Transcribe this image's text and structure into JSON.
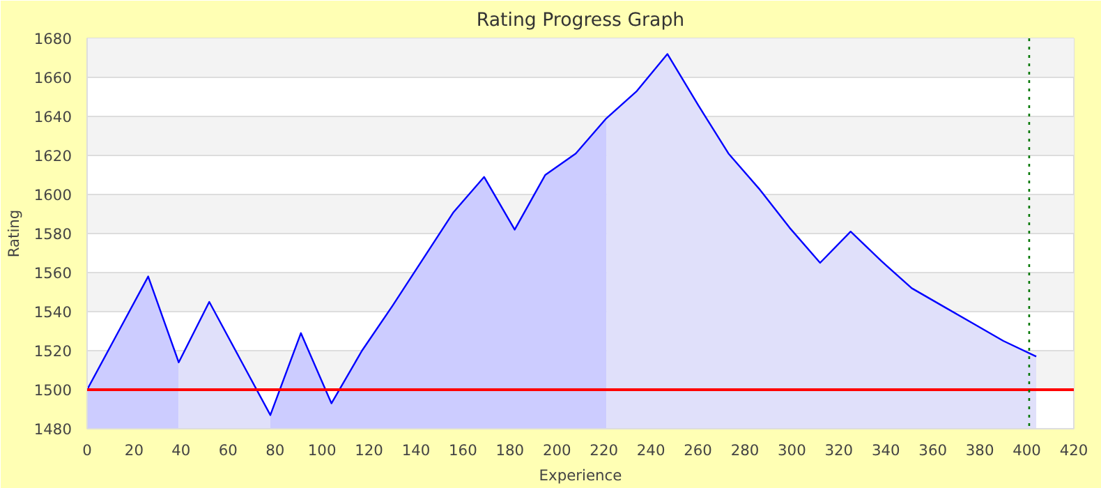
{
  "chart_data": {
    "type": "area",
    "title": "Rating Progress Graph",
    "xlabel": "Experience",
    "ylabel": "Rating",
    "xlim": [
      0,
      420
    ],
    "xticks": [
      0,
      20,
      40,
      60,
      80,
      100,
      120,
      140,
      160,
      180,
      200,
      220,
      240,
      260,
      280,
      300,
      320,
      340,
      360,
      380,
      400,
      420
    ],
    "ylim": [
      1480,
      1680
    ],
    "yticks": [
      1480,
      1500,
      1520,
      1540,
      1560,
      1580,
      1600,
      1620,
      1640,
      1660,
      1680
    ],
    "grid": "y",
    "series": [
      {
        "color": "#ccccff",
        "x": [
          0,
          13,
          26,
          39
        ],
        "values": [
          1500,
          1529,
          1558,
          1514
        ]
      },
      {
        "color": "#e0e0fa",
        "x": [
          39,
          52,
          65,
          78
        ],
        "values": [
          1514,
          1545,
          1516,
          1487
        ]
      },
      {
        "color": "#ccccff",
        "x": [
          78,
          91,
          104,
          117,
          130,
          143,
          156,
          169,
          182,
          195,
          208,
          221
        ],
        "values": [
          1487,
          1529,
          1493,
          1520,
          1543,
          1567,
          1591,
          1609,
          1582,
          1610,
          1621,
          1639
        ]
      },
      {
        "color": "#e0e0fa",
        "x": [
          221,
          234,
          247,
          260,
          273,
          286,
          299,
          312,
          325,
          338,
          351,
          364,
          377,
          390,
          404
        ],
        "values": [
          1639,
          1653,
          1672,
          1646,
          1621,
          1603,
          1583,
          1565,
          1581,
          1566,
          1552,
          1543,
          1534,
          1525,
          1517
        ]
      },
      {
        "type": "line",
        "color": "#0000ff",
        "x": [
          0,
          13,
          26,
          39,
          52,
          65,
          78,
          91,
          104,
          117,
          130,
          143,
          156,
          169,
          182,
          195,
          208,
          221,
          234,
          247,
          260,
          273,
          286,
          299,
          312,
          325,
          338,
          351,
          364,
          377,
          390,
          404
        ],
        "values": [
          1500,
          1529,
          1558,
          1514,
          1545,
          1516,
          1487,
          1529,
          1493,
          1520,
          1543,
          1567,
          1591,
          1609,
          1582,
          1610,
          1621,
          1639,
          1653,
          1672,
          1646,
          1621,
          1603,
          1583,
          1565,
          1581,
          1566,
          1552,
          1543,
          1534,
          1525,
          1517
        ]
      }
    ],
    "ref_lines": [
      {
        "axis": "y",
        "value": 1500,
        "color": "#ff0000",
        "line_style": "solid"
      },
      {
        "axis": "x",
        "value": 401,
        "color": "#007700",
        "line_style": "dotted"
      }
    ]
  }
}
